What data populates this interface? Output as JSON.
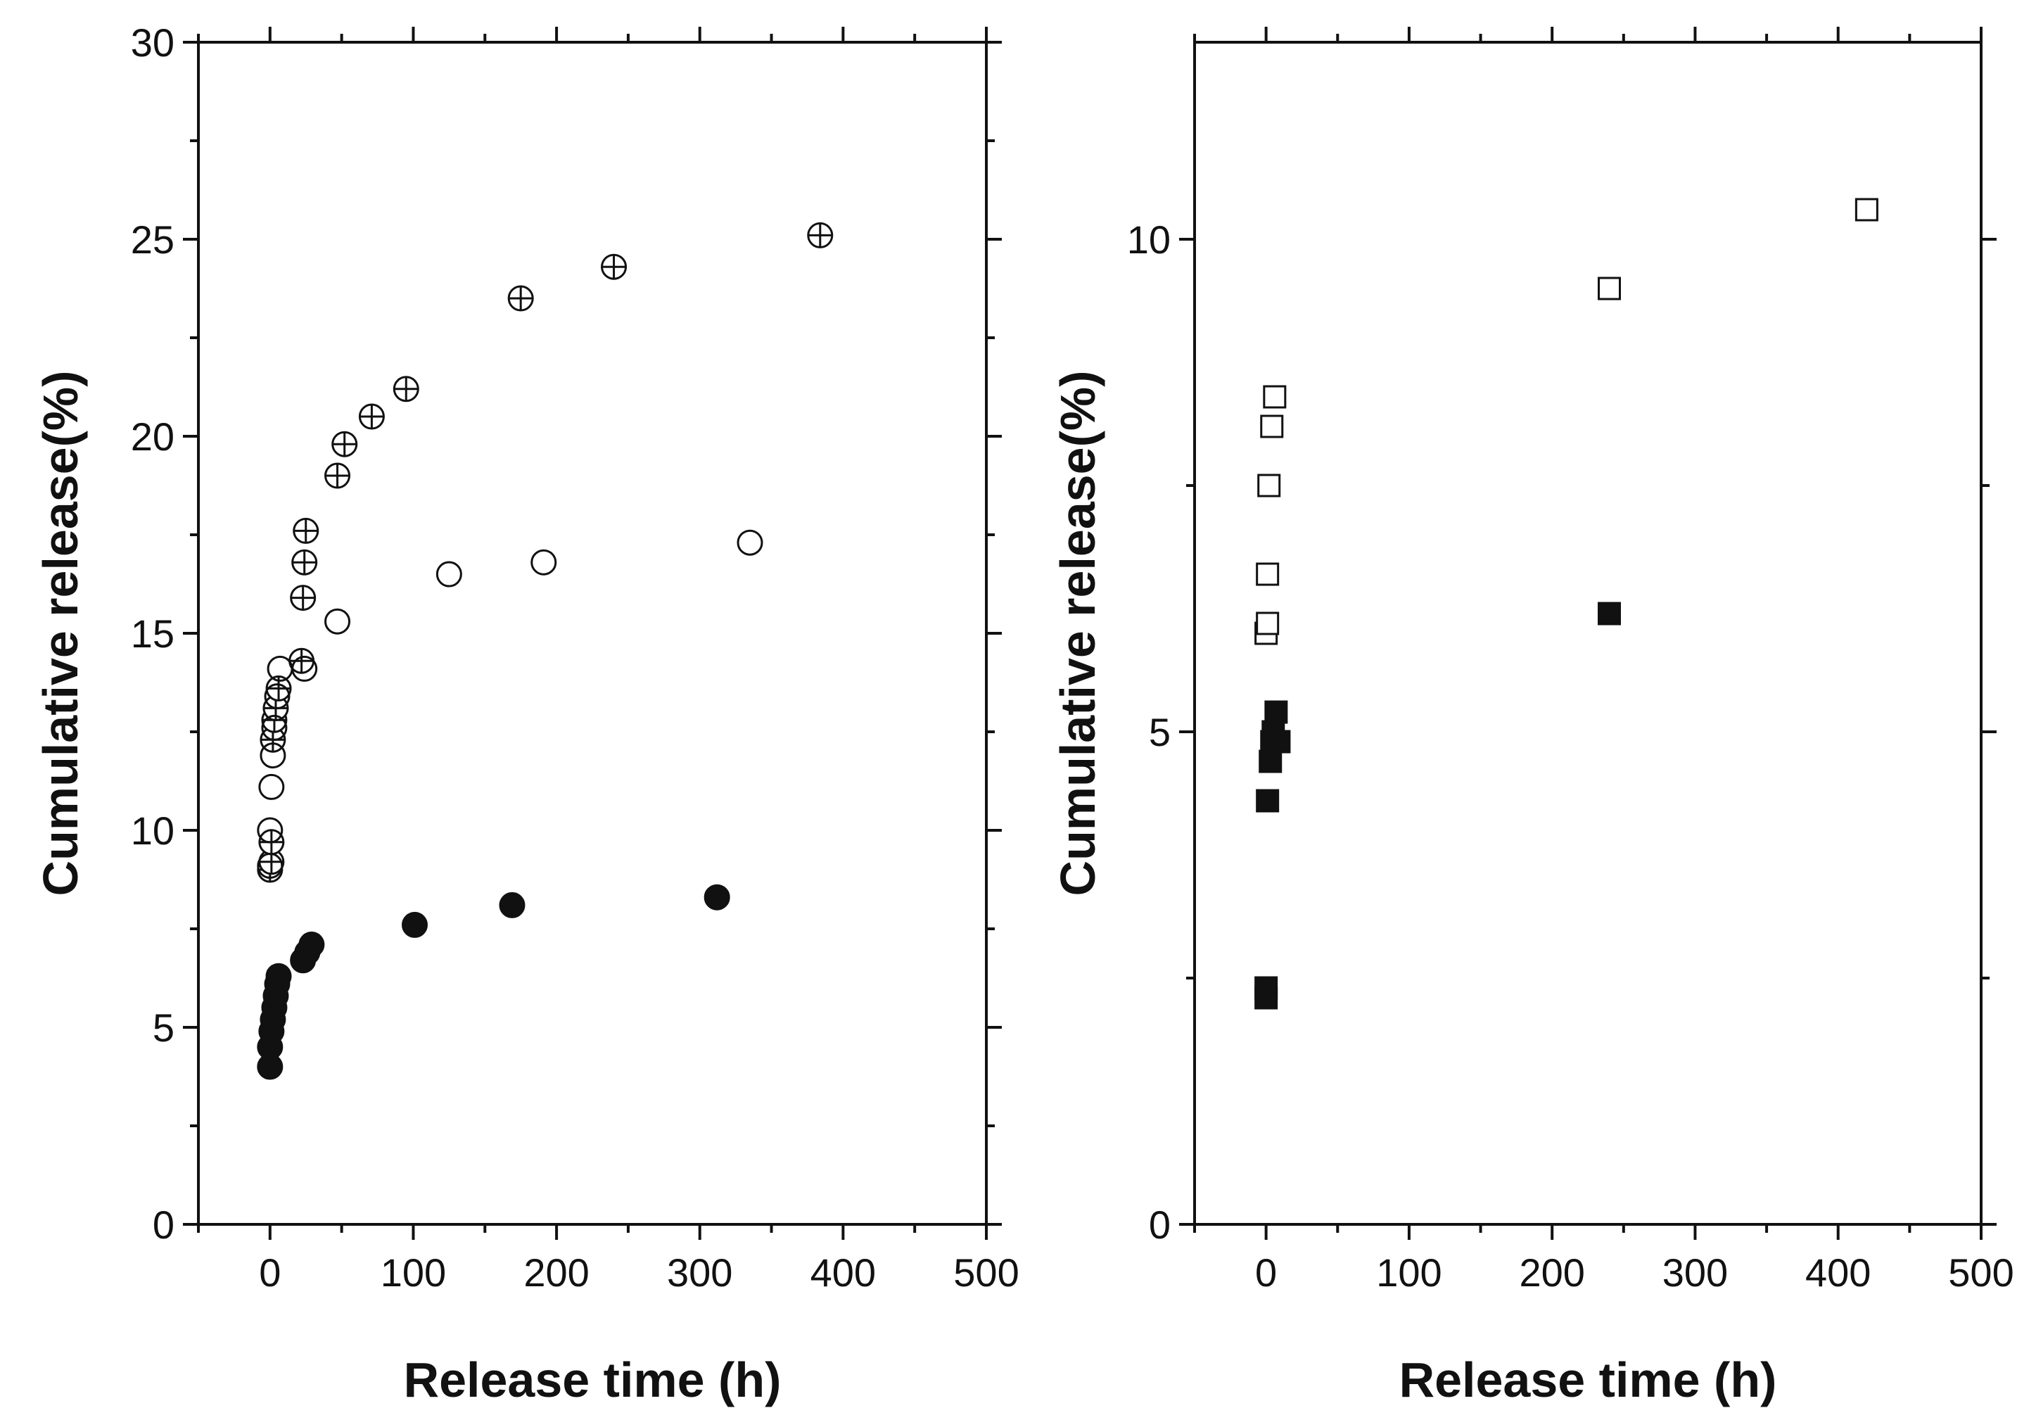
{
  "chart_data": [
    {
      "type": "scatter",
      "panel": "left",
      "title": "",
      "xlabel": "Release time (h)",
      "ylabel": "Cumulative release(%)",
      "xlim": [
        -50,
        500
      ],
      "ylim": [
        0,
        30
      ],
      "x_ticks": [
        0,
        100,
        200,
        300,
        400,
        500
      ],
      "y_ticks": [
        0,
        5,
        10,
        15,
        20,
        25,
        30
      ],
      "grid": false,
      "legend": "none",
      "colors": {
        "marker": "#111111",
        "axis": "#111111"
      },
      "series": [
        {
          "name": "crossed circles",
          "marker": "circle-plus",
          "points": [
            [
              0,
              9.0
            ],
            [
              1,
              9.2
            ],
            [
              1,
              9.7
            ],
            [
              2,
              12.3
            ],
            [
              3,
              12.8
            ],
            [
              4,
              13.1
            ],
            [
              6,
              13.6
            ],
            [
              22,
              14.3
            ],
            [
              23,
              15.9
            ],
            [
              24,
              16.8
            ],
            [
              25,
              17.6
            ],
            [
              47,
              19.0
            ],
            [
              52,
              19.8
            ],
            [
              71,
              20.5
            ],
            [
              95,
              21.2
            ],
            [
              175,
              23.5
            ],
            [
              240,
              24.3
            ],
            [
              384,
              25.1
            ]
          ]
        },
        {
          "name": "open circles",
          "marker": "circle-open",
          "points": [
            [
              0,
              9.1
            ],
            [
              0,
              10.0
            ],
            [
              1,
              11.1
            ],
            [
              2,
              11.9
            ],
            [
              3,
              12.6
            ],
            [
              5,
              13.4
            ],
            [
              7,
              14.1
            ],
            [
              24,
              14.1
            ],
            [
              47,
              15.3
            ],
            [
              125,
              16.5
            ],
            [
              191,
              16.8
            ],
            [
              335,
              17.3
            ]
          ]
        },
        {
          "name": "filled circles",
          "marker": "circle-filled",
          "points": [
            [
              0,
              4.0
            ],
            [
              0,
              4.5
            ],
            [
              1,
              4.9
            ],
            [
              2,
              5.2
            ],
            [
              3,
              5.5
            ],
            [
              4,
              5.8
            ],
            [
              5,
              6.1
            ],
            [
              6,
              6.3
            ],
            [
              23,
              6.7
            ],
            [
              26,
              6.9
            ],
            [
              29,
              7.1
            ],
            [
              101,
              7.6
            ],
            [
              169,
              8.1
            ],
            [
              312,
              8.3
            ]
          ]
        }
      ]
    },
    {
      "type": "scatter",
      "panel": "right",
      "title": "",
      "xlabel": "Release time (h)",
      "ylabel": "Cumulative release(%)",
      "xlim": [
        -50,
        500
      ],
      "ylim": [
        0,
        12
      ],
      "x_ticks": [
        0,
        100,
        200,
        300,
        400,
        500
      ],
      "y_ticks": [
        0,
        5,
        10
      ],
      "grid": false,
      "legend": "none",
      "colors": {
        "marker": "#111111",
        "axis": "#111111"
      },
      "series": [
        {
          "name": "open squares",
          "marker": "square-open",
          "points": [
            [
              0,
              6.0
            ],
            [
              1,
              6.1
            ],
            [
              1,
              6.6
            ],
            [
              2,
              7.5
            ],
            [
              4,
              8.1
            ],
            [
              6,
              8.4
            ],
            [
              240,
              9.5
            ],
            [
              420,
              10.3
            ]
          ]
        },
        {
          "name": "filled squares",
          "marker": "square-filled",
          "points": [
            [
              0,
              2.3
            ],
            [
              0,
              2.4
            ],
            [
              1,
              4.3
            ],
            [
              3,
              4.7
            ],
            [
              4,
              4.9
            ],
            [
              5,
              5.0
            ],
            [
              7,
              5.2
            ],
            [
              9,
              4.9
            ],
            [
              240,
              6.2
            ]
          ]
        }
      ]
    }
  ]
}
